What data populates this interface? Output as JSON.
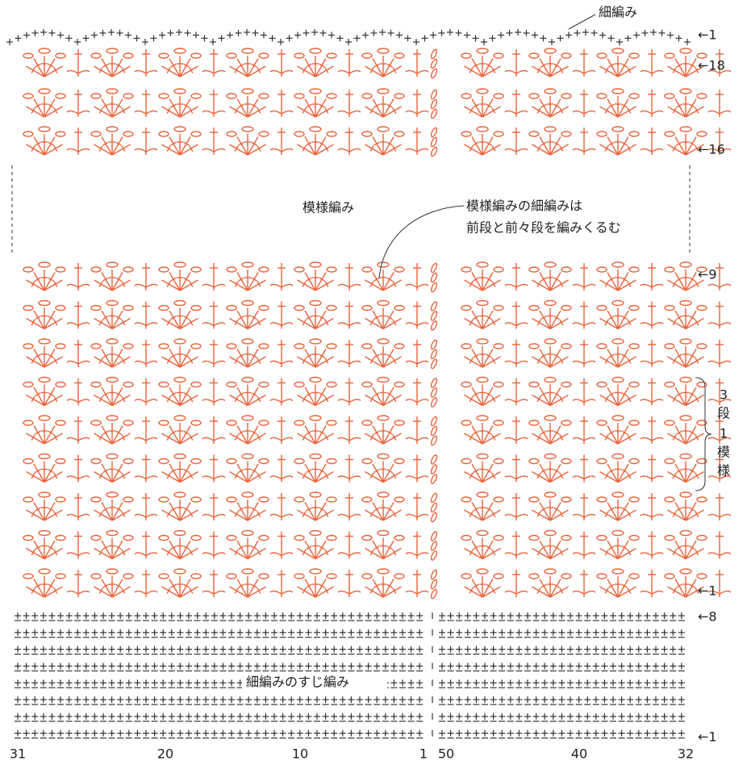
{
  "labels": {
    "top_sc": "細編み",
    "pattern": "模様編み",
    "note_line1": "模様編みの細編みは",
    "note_line2": "前段と前々段を編みくるむ",
    "repeat": [
      "3",
      "段",
      "1",
      "模",
      "様"
    ],
    "sc_band": "細編みのすじ編み"
  },
  "row_markers": [
    "←1",
    "←18",
    "←16",
    "←9",
    "←1",
    "←8",
    "←1"
  ],
  "bottom_scale": [
    "31",
    "20",
    "10",
    "1",
    "50",
    "40",
    "32"
  ]
}
